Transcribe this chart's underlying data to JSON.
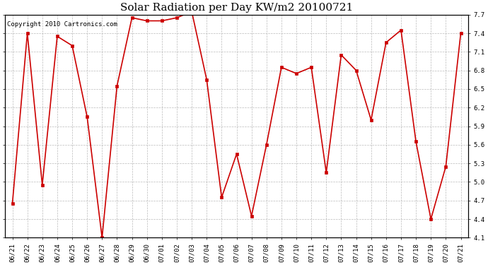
{
  "title": "Solar Radiation per Day KW/m2 20100721",
  "copyright": "Copyright 2010 Cartronics.com",
  "dates": [
    "06/21",
    "06/22",
    "06/23",
    "06/24",
    "06/25",
    "06/26",
    "06/27",
    "06/28",
    "06/29",
    "06/30",
    "07/01",
    "07/02",
    "07/03",
    "07/04",
    "07/05",
    "07/06",
    "07/07",
    "07/08",
    "07/09",
    "07/10",
    "07/11",
    "07/12",
    "07/13",
    "07/14",
    "07/15",
    "07/16",
    "07/17",
    "07/18",
    "07/19",
    "07/20",
    "07/21"
  ],
  "values": [
    4.65,
    7.4,
    4.95,
    7.35,
    7.2,
    6.05,
    4.1,
    6.55,
    7.65,
    7.6,
    7.6,
    7.65,
    7.75,
    6.65,
    4.75,
    5.45,
    4.45,
    5.6,
    6.85,
    6.75,
    6.85,
    5.15,
    7.05,
    6.8,
    6.0,
    7.25,
    7.45,
    5.65,
    4.4,
    5.25,
    7.4
  ],
  "line_color": "#cc0000",
  "marker_color": "#cc0000",
  "bg_color": "#ffffff",
  "grid_color": "#aaaaaa",
  "ylim": [
    4.1,
    7.7
  ],
  "yticks": [
    4.1,
    4.4,
    4.7,
    5.0,
    5.3,
    5.6,
    5.9,
    6.2,
    6.5,
    6.8,
    7.1,
    7.4,
    7.7
  ],
  "ytick_labels": [
    "4.1",
    "4.4",
    "4.7",
    "5.0",
    "5.3",
    "5.6",
    "5.9",
    "6.2",
    "6.5",
    "6.8",
    "7.1",
    "7.4",
    "7.7"
  ],
  "title_fontsize": 11,
  "copyright_fontsize": 6.5,
  "tick_fontsize": 6.5
}
